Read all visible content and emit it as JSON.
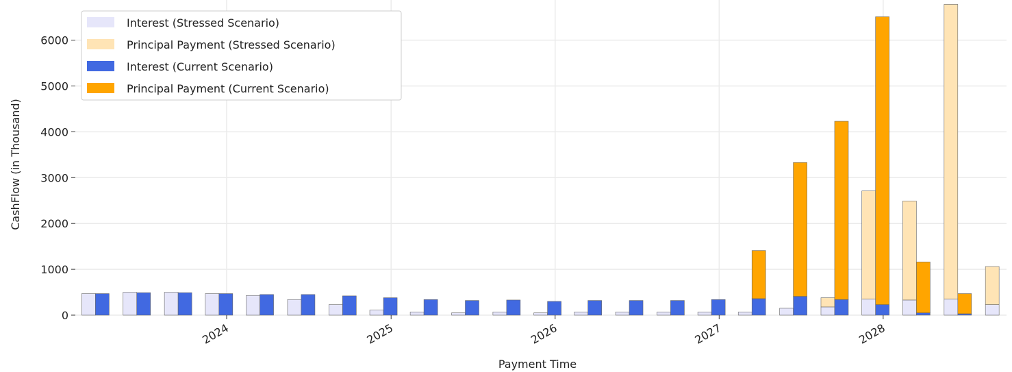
{
  "chart_data": {
    "type": "bar",
    "xlabel": "Payment Time",
    "ylabel": "CashFlow (in Thousand)",
    "ylim": [
      0,
      6800
    ],
    "yticks": [
      0,
      1000,
      2000,
      3000,
      4000,
      5000,
      6000
    ],
    "xticks": [
      "2024",
      "2025",
      "2026",
      "2027",
      "2028"
    ],
    "grid": true,
    "legend_position": "top-left",
    "periods": [
      "2023-03",
      "2023-06",
      "2023-09",
      "2023-12",
      "2024-03",
      "2024-06",
      "2024-09",
      "2024-12",
      "2025-03",
      "2025-06",
      "2025-09",
      "2025-12",
      "2026-03",
      "2026-06",
      "2026-09",
      "2026-12",
      "2027-03",
      "2027-06",
      "2027-09",
      "2027-12",
      "2028-03",
      "2028-06",
      "2028-09"
    ],
    "series": [
      {
        "name": "Interest (Stressed Scenario)",
        "color": "#e6e6fa",
        "values": [
          470,
          500,
          500,
          470,
          430,
          340,
          230,
          110,
          70,
          50,
          70,
          50,
          70,
          70,
          70,
          70,
          70,
          150,
          180,
          350,
          330,
          350,
          230
        ]
      },
      {
        "name": "Principal Payment (Stressed Scenario)",
        "color": "#ffe4b5",
        "values": [
          0,
          0,
          0,
          0,
          0,
          0,
          0,
          0,
          0,
          0,
          0,
          0,
          0,
          0,
          0,
          0,
          0,
          0,
          200,
          2360,
          2160,
          6430,
          830
        ]
      },
      {
        "name": "Interest (Current Scenario)",
        "color": "#4169e1",
        "values": [
          470,
          490,
          490,
          470,
          450,
          450,
          420,
          380,
          340,
          320,
          330,
          300,
          320,
          320,
          320,
          340,
          360,
          410,
          340,
          230,
          50,
          30,
          null
        ]
      },
      {
        "name": "Principal Payment (Current Scenario)",
        "color": "#ffa500",
        "values": [
          0,
          0,
          0,
          0,
          0,
          0,
          0,
          0,
          0,
          0,
          0,
          0,
          0,
          0,
          0,
          0,
          1050,
          2920,
          3890,
          6280,
          1110,
          440,
          null
        ]
      }
    ]
  }
}
